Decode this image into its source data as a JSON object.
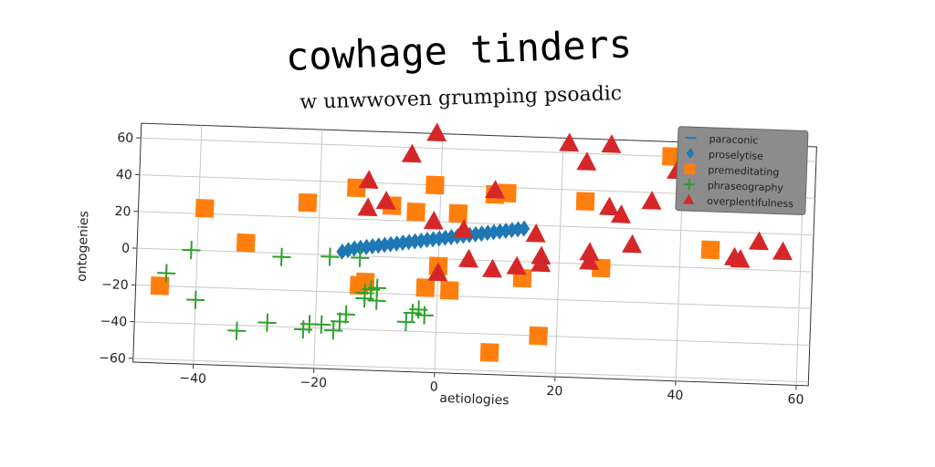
{
  "chart_data": {
    "type": "scatter",
    "title": "cowhage tinders",
    "subtitle": "w unwwoven grumping psoadic",
    "xlabel": "aetiologies",
    "ylabel": "ontogenies",
    "xlim": [
      -50,
      62
    ],
    "ylim": [
      -62,
      68
    ],
    "xticks": [
      -40,
      -20,
      0,
      20,
      40,
      60
    ],
    "yticks": [
      -60,
      -40,
      -20,
      0,
      20,
      40,
      60
    ],
    "xtick_labels": [
      "−40",
      "−20",
      "0",
      "20",
      "40",
      "60"
    ],
    "ytick_labels": [
      "−60",
      "−40",
      "−20",
      "0",
      "20",
      "40",
      "60"
    ],
    "grid": true,
    "legend_position": "top-right",
    "series": [
      {
        "name": "paraconic",
        "marker": "line",
        "color": "#1f77b4",
        "points": []
      },
      {
        "name": "proselytise",
        "marker": "diamond",
        "color": "#1f77b4",
        "points": [
          [
            -16,
            2
          ],
          [
            -15,
            3
          ],
          [
            -14,
            4
          ],
          [
            -13,
            4.5
          ],
          [
            -12,
            5
          ],
          [
            -11,
            5.5
          ],
          [
            -10,
            6
          ],
          [
            -9,
            6.5
          ],
          [
            -8,
            7
          ],
          [
            -7,
            7.5
          ],
          [
            -6,
            8
          ],
          [
            -5,
            8.5
          ],
          [
            -4,
            9
          ],
          [
            -3,
            9.5
          ],
          [
            -2,
            10
          ],
          [
            -1,
            10.5
          ],
          [
            0,
            11
          ],
          [
            1,
            11.5
          ],
          [
            2,
            12
          ],
          [
            3,
            12.5
          ],
          [
            4,
            13
          ],
          [
            5,
            13.5
          ],
          [
            6,
            14
          ],
          [
            7,
            14.5
          ],
          [
            8,
            15
          ],
          [
            9,
            15.5
          ],
          [
            10,
            16
          ],
          [
            11,
            16.5
          ],
          [
            12,
            17
          ],
          [
            13,
            17.5
          ],
          [
            14,
            18
          ]
        ]
      },
      {
        "name": "premeditating",
        "marker": "square",
        "color": "#ff7f0e",
        "points": [
          [
            -46,
            -20
          ],
          [
            -39,
            23
          ],
          [
            -32,
            5
          ],
          [
            -22,
            28
          ],
          [
            -14,
            37
          ],
          [
            -13,
            -16
          ],
          [
            -12,
            -14
          ],
          [
            -8,
            28
          ],
          [
            -4,
            25
          ],
          [
            -2,
            -16
          ],
          [
            -1,
            40
          ],
          [
            0,
            -4
          ],
          [
            2,
            -17
          ],
          [
            3,
            25
          ],
          [
            9,
            -50
          ],
          [
            9,
            36
          ],
          [
            11,
            37
          ],
          [
            14,
            -9
          ],
          [
            17,
            -40
          ],
          [
            24,
            34
          ],
          [
            27,
            -2
          ],
          [
            38,
            60
          ],
          [
            45,
            10
          ]
        ]
      },
      {
        "name": "phraseography",
        "marker": "plus",
        "color": "#2ca02c",
        "points": [
          [
            -45,
            -13
          ],
          [
            -41,
            0
          ],
          [
            -40,
            -27
          ],
          [
            -33,
            -43
          ],
          [
            -28,
            -38
          ],
          [
            -26,
            -2
          ],
          [
            -22,
            -41
          ],
          [
            -21,
            -38
          ],
          [
            -19,
            -38
          ],
          [
            -18,
            -1
          ],
          [
            -17,
            -41
          ],
          [
            -16,
            -36
          ],
          [
            -15,
            -32
          ],
          [
            -13,
            -1
          ],
          [
            -12,
            -20
          ],
          [
            -12,
            -23
          ],
          [
            -11,
            -18
          ],
          [
            -10,
            -24
          ],
          [
            -10,
            -17
          ],
          [
            -5,
            -35
          ],
          [
            -4,
            -30
          ],
          [
            -3,
            -28
          ],
          [
            -2,
            -31
          ]
        ]
      },
      {
        "name": "overplentifulness",
        "marker": "triangle",
        "color": "#d62728",
        "points": [
          [
            -12,
            41
          ],
          [
            -12,
            26
          ],
          [
            -9,
            30
          ],
          [
            -5,
            56
          ],
          [
            -1,
            68
          ],
          [
            -1,
            20
          ],
          [
            0,
            -8
          ],
          [
            4,
            16
          ],
          [
            5,
            0
          ],
          [
            9,
            38
          ],
          [
            9,
            -5
          ],
          [
            13,
            -3
          ],
          [
            16,
            15
          ],
          [
            17,
            -1
          ],
          [
            17,
            3
          ],
          [
            21,
            65
          ],
          [
            24,
            55
          ],
          [
            25,
            6
          ],
          [
            25,
            1
          ],
          [
            28,
            65
          ],
          [
            28,
            31
          ],
          [
            30,
            27
          ],
          [
            32,
            11
          ],
          [
            35,
            35
          ],
          [
            39,
            52
          ],
          [
            44,
            63
          ],
          [
            46,
            53
          ],
          [
            49,
            6
          ],
          [
            50,
            5
          ],
          [
            53,
            15
          ],
          [
            57,
            10
          ]
        ]
      }
    ]
  }
}
